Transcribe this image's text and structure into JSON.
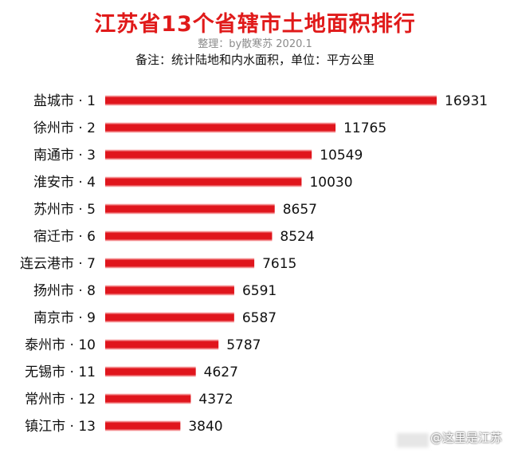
{
  "title": "江苏省13个省辖市土地面积排行",
  "subtitle": "整理：by散寒苏 2020.1",
  "note": "备注：统计陆地和内水面积，单位：平方公里",
  "watermark": "@这里是江苏",
  "colors": {
    "bar": "#e0151c",
    "bar_edge": "#ffd6d6",
    "title": "#e01a1a"
  },
  "chart_data": {
    "type": "bar",
    "orientation": "horizontal",
    "categories": [
      "盐城市 · 1",
      "徐州市 · 2",
      "南通市 · 3",
      "淮安市 · 4",
      "苏州市 · 5",
      "宿迁市 · 6",
      "连云港市 · 7",
      "扬州市 · 8",
      "南京市 · 9",
      "泰州市 · 10",
      "无锡市 · 11",
      "常州市 · 12",
      "镇江市 · 13"
    ],
    "values": [
      16931,
      11765,
      10549,
      10030,
      8657,
      8524,
      7615,
      6591,
      6587,
      5787,
      4627,
      4372,
      3840
    ],
    "data_labels": [
      "16931",
      "11765",
      "10549",
      "10030",
      "8657",
      "8524",
      "7615",
      "6591",
      "6587",
      "5787",
      "4627",
      "4372",
      "3840"
    ],
    "xlim": [
      0,
      16931
    ],
    "grid": false,
    "legend": "none"
  }
}
